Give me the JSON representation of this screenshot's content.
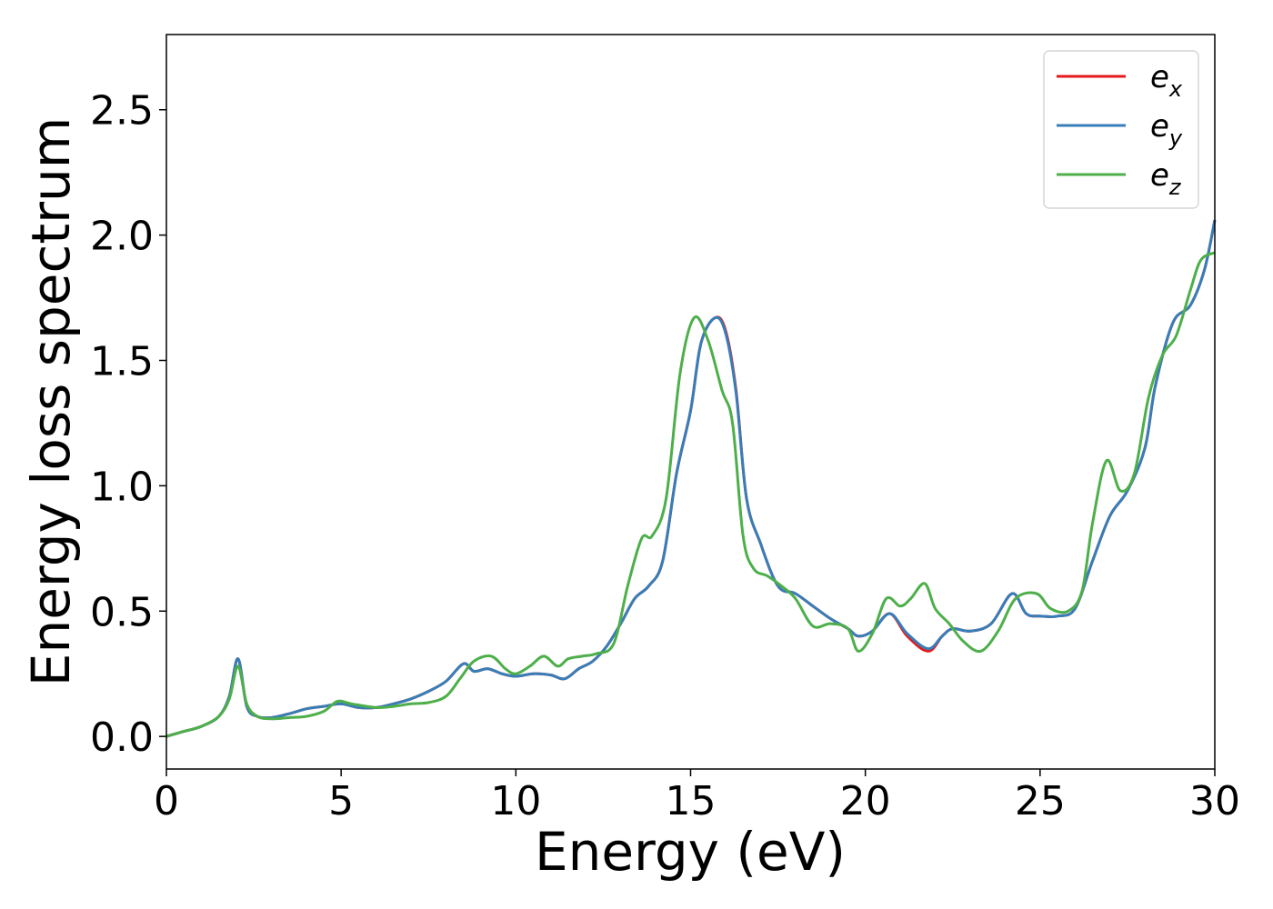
{
  "chart_data": {
    "type": "line",
    "xlabel": "Energy (eV)",
    "ylabel": "Energy loss spectrum",
    "xlim": [
      0,
      30
    ],
    "ylim": [
      -0.13,
      2.8
    ],
    "xticks": [
      "0",
      "5",
      "10",
      "15",
      "20",
      "25",
      "30"
    ],
    "yticks": [
      "0.0",
      "0.5",
      "1.0",
      "1.5",
      "2.0",
      "2.5"
    ],
    "legend_position": "top-right",
    "series": [
      {
        "name": "e",
        "subscript": "x",
        "color": "#e41a1c",
        "x": [
          0,
          0.5,
          1.0,
          1.5,
          1.8,
          2.05,
          2.3,
          2.6,
          3.0,
          3.5,
          4.0,
          4.5,
          5.0,
          5.5,
          6.0,
          6.5,
          7.0,
          7.5,
          8.0,
          8.5,
          8.8,
          9.2,
          9.6,
          10.0,
          10.5,
          11.0,
          11.4,
          11.8,
          12.2,
          12.6,
          13.0,
          13.4,
          13.8,
          14.2,
          14.6,
          15.0,
          15.3,
          15.7,
          16.0,
          16.3,
          16.6,
          17.0,
          17.5,
          18.0,
          18.5,
          19.0,
          19.5,
          19.8,
          20.2,
          20.7,
          21.2,
          21.8,
          22.2,
          22.5,
          23.0,
          23.6,
          24.2,
          24.6,
          25.0,
          25.5,
          26.0,
          26.5,
          27.0,
          27.5,
          28.0,
          28.3,
          28.8,
          29.3,
          29.7,
          30.0
        ],
        "values": [
          0.0,
          0.02,
          0.04,
          0.08,
          0.16,
          0.31,
          0.12,
          0.08,
          0.075,
          0.09,
          0.11,
          0.12,
          0.13,
          0.115,
          0.115,
          0.13,
          0.15,
          0.18,
          0.22,
          0.29,
          0.26,
          0.27,
          0.25,
          0.24,
          0.25,
          0.245,
          0.23,
          0.27,
          0.3,
          0.36,
          0.45,
          0.55,
          0.6,
          0.7,
          1.05,
          1.3,
          1.57,
          1.67,
          1.62,
          1.38,
          0.95,
          0.77,
          0.6,
          0.57,
          0.52,
          0.47,
          0.43,
          0.4,
          0.42,
          0.49,
          0.4,
          0.34,
          0.4,
          0.43,
          0.42,
          0.45,
          0.57,
          0.49,
          0.48,
          0.48,
          0.51,
          0.7,
          0.88,
          0.98,
          1.15,
          1.4,
          1.65,
          1.72,
          1.86,
          2.06
        ]
      },
      {
        "name": "e",
        "subscript": "y",
        "color": "#377eb8",
        "x": [
          0,
          0.5,
          1.0,
          1.5,
          1.8,
          2.05,
          2.3,
          2.6,
          3.0,
          3.5,
          4.0,
          4.5,
          5.0,
          5.5,
          6.0,
          6.5,
          7.0,
          7.5,
          8.0,
          8.5,
          8.8,
          9.2,
          9.6,
          10.0,
          10.5,
          11.0,
          11.4,
          11.8,
          12.2,
          12.6,
          13.0,
          13.4,
          13.8,
          14.2,
          14.6,
          15.0,
          15.3,
          15.7,
          16.0,
          16.3,
          16.6,
          17.0,
          17.5,
          18.0,
          18.5,
          19.0,
          19.5,
          19.8,
          20.2,
          20.7,
          21.2,
          21.8,
          22.2,
          22.5,
          23.0,
          23.6,
          24.2,
          24.6,
          25.0,
          25.5,
          26.0,
          26.5,
          27.0,
          27.5,
          28.0,
          28.3,
          28.8,
          29.3,
          29.7,
          30.0
        ],
        "values": [
          0.0,
          0.02,
          0.04,
          0.08,
          0.16,
          0.31,
          0.12,
          0.08,
          0.075,
          0.09,
          0.11,
          0.12,
          0.13,
          0.115,
          0.115,
          0.13,
          0.15,
          0.18,
          0.22,
          0.29,
          0.26,
          0.27,
          0.25,
          0.24,
          0.25,
          0.245,
          0.23,
          0.27,
          0.3,
          0.36,
          0.45,
          0.55,
          0.6,
          0.7,
          1.05,
          1.3,
          1.57,
          1.67,
          1.61,
          1.37,
          0.95,
          0.77,
          0.6,
          0.57,
          0.52,
          0.47,
          0.43,
          0.4,
          0.42,
          0.49,
          0.41,
          0.35,
          0.4,
          0.43,
          0.42,
          0.45,
          0.57,
          0.49,
          0.48,
          0.48,
          0.51,
          0.7,
          0.88,
          0.98,
          1.15,
          1.4,
          1.65,
          1.72,
          1.86,
          2.06
        ]
      },
      {
        "name": "e",
        "subscript": "z",
        "color": "#4daf4a",
        "x": [
          0,
          0.5,
          1.0,
          1.5,
          1.8,
          2.05,
          2.3,
          2.6,
          3.0,
          3.5,
          4.0,
          4.5,
          4.9,
          5.3,
          6.0,
          6.5,
          7.0,
          7.5,
          8.0,
          8.4,
          8.8,
          9.3,
          9.7,
          10.0,
          10.4,
          10.8,
          11.2,
          11.5,
          11.9,
          12.3,
          12.8,
          13.2,
          13.6,
          13.9,
          14.3,
          14.7,
          15.1,
          15.5,
          15.9,
          16.2,
          16.5,
          16.8,
          17.2,
          17.6,
          18.0,
          18.5,
          19.0,
          19.5,
          19.8,
          20.2,
          20.6,
          21.0,
          21.3,
          21.7,
          22.0,
          22.4,
          22.8,
          23.3,
          23.8,
          24.3,
          24.9,
          25.3,
          25.8,
          26.2,
          26.5,
          26.9,
          27.3,
          27.7,
          28.1,
          28.5,
          28.9,
          29.3,
          29.6,
          30.0
        ],
        "values": [
          0.0,
          0.02,
          0.04,
          0.08,
          0.15,
          0.28,
          0.13,
          0.08,
          0.07,
          0.075,
          0.08,
          0.1,
          0.14,
          0.13,
          0.115,
          0.12,
          0.13,
          0.135,
          0.16,
          0.23,
          0.3,
          0.32,
          0.27,
          0.25,
          0.28,
          0.32,
          0.28,
          0.31,
          0.32,
          0.33,
          0.37,
          0.6,
          0.79,
          0.8,
          0.95,
          1.45,
          1.67,
          1.58,
          1.38,
          1.25,
          0.8,
          0.67,
          0.64,
          0.6,
          0.55,
          0.44,
          0.45,
          0.43,
          0.34,
          0.41,
          0.55,
          0.52,
          0.55,
          0.61,
          0.51,
          0.45,
          0.38,
          0.34,
          0.42,
          0.55,
          0.57,
          0.51,
          0.5,
          0.58,
          0.85,
          1.1,
          0.98,
          1.05,
          1.35,
          1.52,
          1.6,
          1.78,
          1.9,
          1.93
        ]
      }
    ]
  }
}
